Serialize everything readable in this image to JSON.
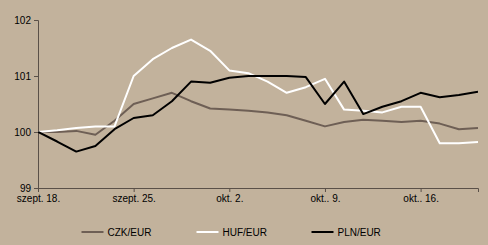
{
  "chart_data": {
    "type": "line",
    "categories": [
      "szept. 18.",
      null,
      null,
      null,
      null,
      "szept. 25.",
      null,
      null,
      null,
      null,
      "okt. 2.",
      null,
      null,
      null,
      null,
      "okt.. 9.",
      null,
      null,
      null,
      null,
      "okt.. 16.",
      null,
      null,
      null
    ],
    "series": [
      {
        "name": "CZK/EUR",
        "color": "#6e5f55",
        "values": [
          100,
          100.0,
          100.02,
          99.95,
          100.2,
          100.5,
          100.6,
          100.7,
          100.55,
          100.42,
          100.4,
          100.38,
          100.35,
          100.3,
          100.2,
          100.1,
          100.18,
          100.22,
          100.2,
          100.18,
          100.2,
          100.15,
          100.05,
          100.07
        ]
      },
      {
        "name": "HUF/EUR",
        "color": "#ffffff",
        "values": [
          100,
          100.03,
          100.07,
          100.1,
          100.1,
          101.0,
          101.3,
          101.5,
          101.65,
          101.45,
          101.1,
          101.05,
          100.9,
          100.7,
          100.8,
          100.95,
          100.4,
          100.38,
          100.35,
          100.45,
          100.45,
          99.8,
          99.8,
          99.82
        ]
      },
      {
        "name": "PLN/EUR",
        "color": "#000000",
        "values": [
          100,
          99.83,
          99.65,
          99.75,
          100.05,
          100.25,
          100.3,
          100.55,
          100.9,
          100.88,
          100.97,
          101.0,
          101.0,
          101.0,
          100.98,
          100.5,
          100.9,
          100.32,
          100.45,
          100.55,
          100.7,
          100.62,
          100.66,
          100.72
        ]
      }
    ],
    "ylim": [
      99,
      102
    ],
    "yticks": [
      99,
      100,
      101,
      102
    ],
    "grid": false,
    "legend": "bottom"
  }
}
